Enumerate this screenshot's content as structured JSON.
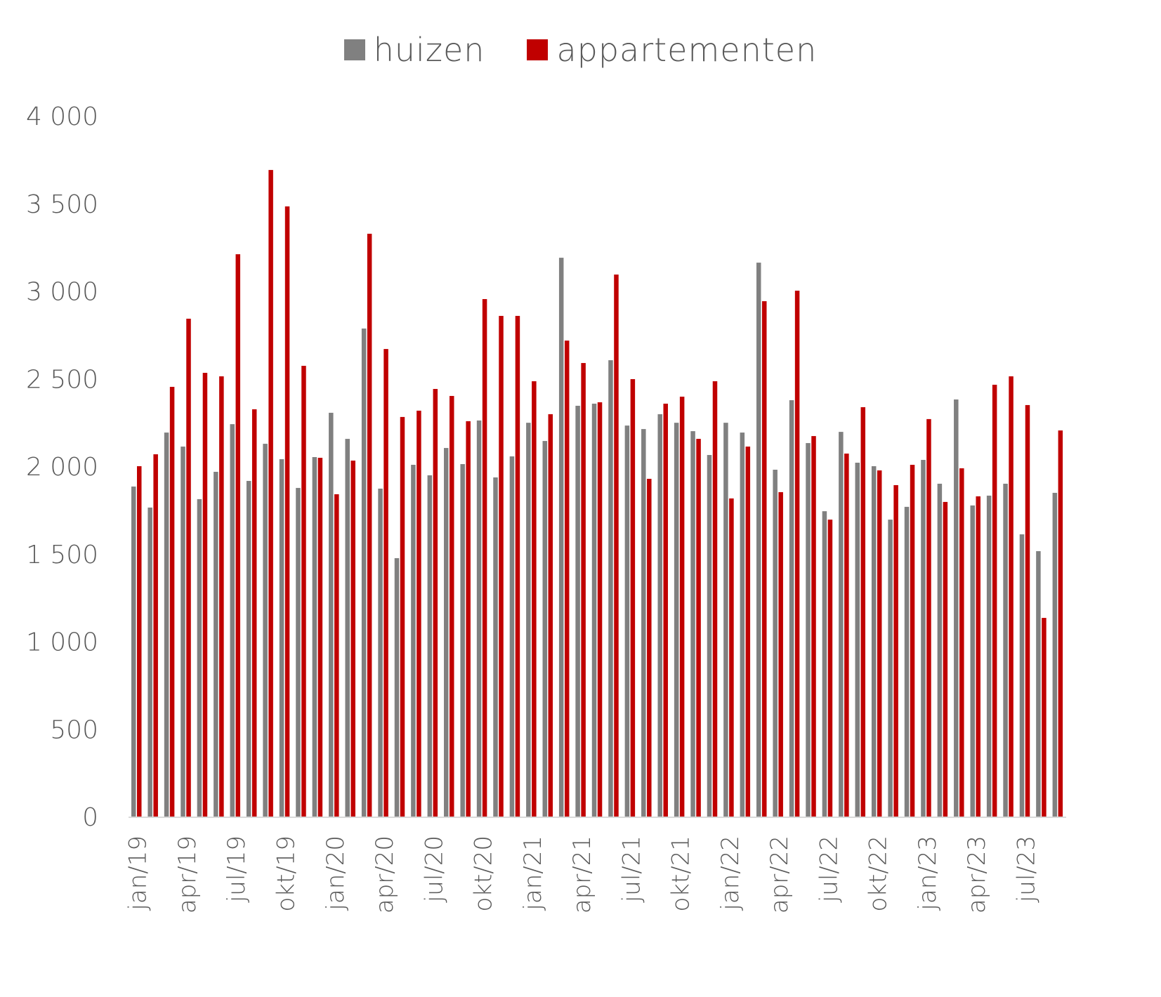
{
  "chart_data": {
    "type": "bar",
    "title": "",
    "xlabel": "",
    "ylabel": "",
    "ylim": [
      0,
      4000
    ],
    "yticks": [
      "0",
      "500",
      "1 000",
      "1 500",
      "2 000",
      "2 500",
      "3 000",
      "3 500",
      "4 000"
    ],
    "ytick_values": [
      0,
      500,
      1000,
      1500,
      2000,
      2500,
      3000,
      3500,
      4000
    ],
    "legend_position": "top",
    "grid": false,
    "categories": [
      "jan/19",
      "feb/19",
      "mrt/19",
      "apr/19",
      "mei/19",
      "jun/19",
      "jul/19",
      "aug/19",
      "sep/19",
      "okt/19",
      "nov/19",
      "dec/19",
      "jan/20",
      "feb/20",
      "mrt/20",
      "apr/20",
      "mei/20",
      "jun/20",
      "jul/20",
      "aug/20",
      "sep/20",
      "okt/20",
      "nov/20",
      "dec/20",
      "jan/21",
      "feb/21",
      "mrt/21",
      "apr/21",
      "mei/21",
      "jun/21",
      "jul/21",
      "aug/21",
      "sep/21",
      "okt/21",
      "nov/21",
      "dec/21",
      "jan/22",
      "feb/22",
      "mrt/22",
      "apr/22",
      "mei/22",
      "jun/22",
      "jul/22",
      "aug/22",
      "sep/22",
      "okt/22",
      "nov/22",
      "dec/22",
      "jan/23",
      "feb/23",
      "mrt/23",
      "apr/23",
      "mei/23",
      "jun/23",
      "jul/23",
      "aug/23",
      "sep/23"
    ],
    "shown_xticks": [
      "jan/19",
      "apr/19",
      "jul/19",
      "okt/19",
      "jan/20",
      "apr/20",
      "jul/20",
      "okt/20",
      "jan/21",
      "apr/21",
      "jul/21",
      "okt/21",
      "jan/22",
      "apr/22",
      "jul/22",
      "okt/22",
      "jan/23",
      "apr/23",
      "jul/23"
    ],
    "series": [
      {
        "name": "huizen",
        "color": "#808080",
        "values": [
          1884,
          1764,
          2192,
          2112,
          1812,
          1968,
          2240,
          1916,
          2128,
          2040,
          1876,
          2052,
          2305,
          2156,
          2786,
          1872,
          1475,
          2008,
          1948,
          2104,
          2012,
          2261,
          1936,
          2056,
          2248,
          2144,
          3190,
          2345,
          2357,
          2605,
          2232,
          2212,
          2297,
          2248,
          2200,
          2064,
          2248,
          2192,
          3162,
          1980,
          2377,
          2132,
          1743,
          2196,
          2020,
          2000,
          1695,
          1768,
          2036,
          1900,
          2381,
          1776,
          1832,
          1900,
          1611,
          1515,
          1848
        ]
      },
      {
        "name": "appartementen",
        "color": "#c00000",
        "values": [
          2000,
          2068,
          2453,
          2842,
          2533,
          2513,
          3210,
          2325,
          3691,
          3483,
          2573,
          2048,
          1840,
          2032,
          3327,
          2669,
          2281,
          2317,
          2441,
          2401,
          2257,
          2954,
          2858,
          2858,
          2485,
          2297,
          2717,
          2589,
          2365,
          3094,
          2497,
          1928,
          2357,
          2397,
          2156,
          2485,
          1816,
          2112,
          2942,
          1852,
          3002,
          2172,
          1695,
          2072,
          2337,
          1976,
          1892,
          2008,
          2269,
          1796,
          1988,
          1828,
          2465,
          2513,
          2349,
          1134,
          2204
        ]
      }
    ]
  }
}
